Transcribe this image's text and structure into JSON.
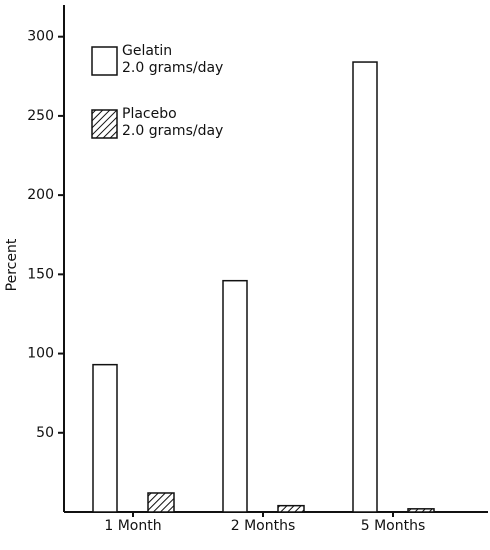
{
  "chart_data": {
    "type": "bar",
    "y_label": "Percent",
    "categories": [
      "1 Month",
      "2 Months",
      "5 Months"
    ],
    "series": [
      {
        "name": "Gelatin\n2.0 grams/day",
        "color": "#ffffff",
        "values": [
          93,
          146,
          284
        ]
      },
      {
        "name": "Placebo\n2.0 grams/day",
        "color": "hatch",
        "values": [
          12,
          4,
          2
        ]
      }
    ],
    "ylim": [
      0,
      320
    ],
    "yticks": [
      50,
      100,
      150,
      200,
      250,
      300
    ],
    "legend": "upper-left"
  }
}
